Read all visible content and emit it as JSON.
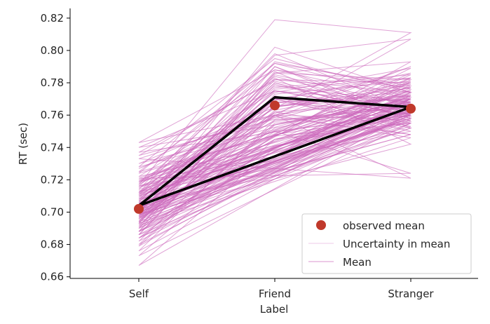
{
  "chart_data": {
    "type": "line",
    "title": "",
    "xlabel": "Label",
    "ylabel": "RT (sec)",
    "categories": [
      "Self",
      "Friend",
      "Stranger"
    ],
    "ylim": [
      0.659,
      0.826
    ],
    "yticks": [
      0.66,
      0.68,
      0.7,
      0.72,
      0.74,
      0.76,
      0.78,
      0.8,
      0.82
    ],
    "ytick_labels": [
      "0.66",
      "0.68",
      "0.70",
      "0.72",
      "0.74",
      "0.76",
      "0.78",
      "0.80",
      "0.82"
    ],
    "grid": false,
    "legend_position": "lower-right",
    "legend": [
      "observed mean",
      "Uncertainty in mean",
      "Mean"
    ],
    "series": [
      {
        "name": "observed mean",
        "style": "markers",
        "color": "#c0392b",
        "values": [
          0.702,
          0.766,
          0.764
        ]
      },
      {
        "name": "Mean",
        "style": "line",
        "color": "#000000",
        "note_order": "Self-Friend-Stranger-Self",
        "values": [
          0.704,
          0.771,
          0.765
        ]
      },
      {
        "name": "Uncertainty in mean",
        "style": "sample-lines",
        "color": "#cc66bb",
        "samples": [
          [
            0.704,
            0.77,
            0.765
          ],
          [
            0.698,
            0.775,
            0.762
          ],
          [
            0.71,
            0.768,
            0.77
          ],
          [
            0.7,
            0.78,
            0.758
          ],
          [
            0.715,
            0.76,
            0.772
          ],
          [
            0.69,
            0.785,
            0.766
          ],
          [
            0.705,
            0.757,
            0.761
          ],
          [
            0.72,
            0.75,
            0.775
          ],
          [
            0.694,
            0.79,
            0.76
          ],
          [
            0.708,
            0.765,
            0.78
          ],
          [
            0.686,
            0.772,
            0.755
          ],
          [
            0.712,
            0.778,
            0.768
          ],
          [
            0.699,
            0.745,
            0.763
          ],
          [
            0.725,
            0.788,
            0.77
          ],
          [
            0.702,
            0.762,
            0.748
          ],
          [
            0.68,
            0.755,
            0.766
          ],
          [
            0.716,
            0.792,
            0.778
          ],
          [
            0.697,
            0.77,
            0.752
          ],
          [
            0.707,
            0.74,
            0.772
          ],
          [
            0.722,
            0.775,
            0.76
          ],
          [
            0.691,
            0.782,
            0.774
          ],
          [
            0.703,
            0.76,
            0.757
          ],
          [
            0.718,
            0.77,
            0.783
          ],
          [
            0.695,
            0.752,
            0.767
          ],
          [
            0.711,
            0.784,
            0.762
          ],
          [
            0.688,
            0.766,
            0.77
          ],
          [
            0.706,
            0.79,
            0.756
          ],
          [
            0.73,
            0.765,
            0.775
          ],
          [
            0.684,
            0.748,
            0.76
          ],
          [
            0.709,
            0.777,
            0.785
          ],
          [
            0.7,
            0.735,
            0.77
          ],
          [
            0.714,
            0.798,
            0.763
          ],
          [
            0.692,
            0.76,
            0.746
          ],
          [
            0.735,
            0.782,
            0.78
          ],
          [
            0.698,
            0.768,
            0.772
          ],
          [
            0.705,
            0.73,
            0.758
          ],
          [
            0.676,
            0.757,
            0.765
          ],
          [
            0.719,
            0.77,
            0.75
          ],
          [
            0.703,
            0.793,
            0.776
          ],
          [
            0.696,
            0.75,
            0.76
          ],
          [
            0.74,
            0.775,
            0.768
          ],
          [
            0.688,
            0.786,
            0.782
          ],
          [
            0.71,
            0.74,
            0.764
          ],
          [
            0.701,
            0.802,
            0.774
          ],
          [
            0.673,
            0.745,
            0.755
          ],
          [
            0.727,
            0.761,
            0.79
          ],
          [
            0.693,
            0.779,
            0.759
          ],
          [
            0.713,
            0.727,
            0.77
          ],
          [
            0.699,
            0.783,
            0.742
          ],
          [
            0.743,
            0.788,
            0.777
          ],
          [
            0.682,
            0.762,
            0.768
          ],
          [
            0.708,
            0.771,
            0.753
          ],
          [
            0.702,
            0.754,
            0.773
          ],
          [
            0.717,
            0.819,
            0.811
          ],
          [
            0.697,
            0.745,
            0.766
          ],
          [
            0.733,
            0.76,
            0.721
          ],
          [
            0.686,
            0.773,
            0.781
          ],
          [
            0.706,
            0.722,
            0.757
          ],
          [
            0.667,
            0.74,
            0.762
          ],
          [
            0.712,
            0.797,
            0.807
          ],
          [
            0.694,
            0.768,
            0.761
          ],
          [
            0.721,
            0.75,
            0.724
          ],
          [
            0.7,
            0.786,
            0.793
          ],
          [
            0.679,
            0.754,
            0.77
          ],
          [
            0.716,
            0.732,
            0.765
          ],
          [
            0.705,
            0.78,
            0.758
          ],
          [
            0.69,
            0.763,
            0.779
          ],
          [
            0.724,
            0.792,
            0.771
          ],
          [
            0.698,
            0.747,
            0.755
          ],
          [
            0.711,
            0.769,
            0.786
          ],
          [
            0.684,
            0.738,
            0.769
          ],
          [
            0.737,
            0.781,
            0.762
          ],
          [
            0.701,
            0.765,
            0.777
          ],
          [
            0.693,
            0.787,
            0.752
          ],
          [
            0.719,
            0.756,
            0.767
          ],
          [
            0.707,
            0.774,
            0.789
          ],
          [
            0.688,
            0.741,
            0.76
          ],
          [
            0.728,
            0.795,
            0.774
          ],
          [
            0.703,
            0.759,
            0.748
          ],
          [
            0.696,
            0.776,
            0.783
          ]
        ]
      }
    ]
  }
}
